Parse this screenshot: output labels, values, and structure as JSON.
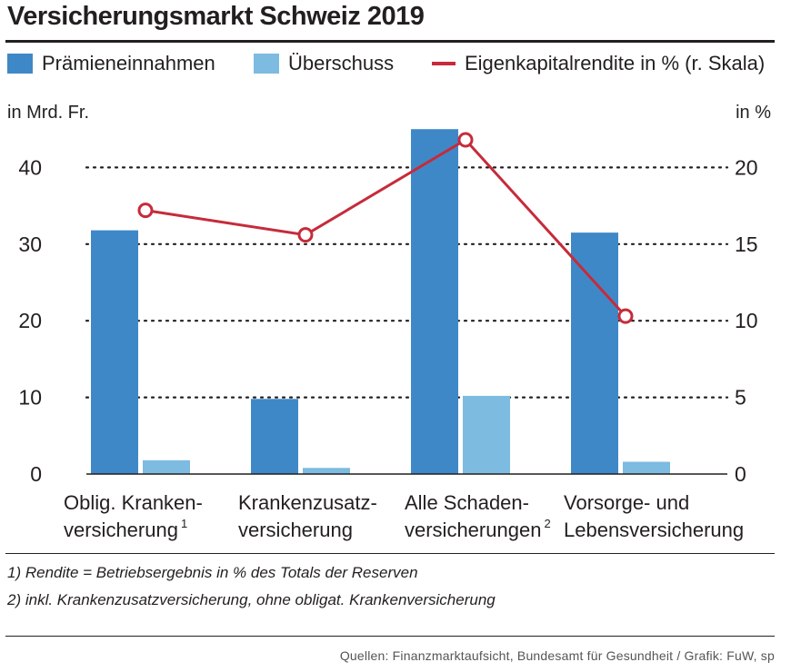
{
  "title": "Versicherungsmarkt Schweiz 2019",
  "colors": {
    "primary": "#3f88c7",
    "secondary": "#7dbbe0",
    "line": "#c62b3a",
    "text": "#231f20"
  },
  "legend": {
    "primary": "Prämieneinnahmen",
    "secondary": "Überschuss",
    "line": "Eigenkapitalrendite in % (r. Skala)"
  },
  "units": {
    "left": "in Mrd. Fr.",
    "right": "in %"
  },
  "chart_data": {
    "type": "bar",
    "title": "Versicherungsmarkt Schweiz 2019",
    "categories": [
      {
        "lines": [
          "Oblig. Kranken-",
          "versicherung"
        ],
        "sup": "1"
      },
      {
        "lines": [
          "Krankenzusatz-",
          "versicherung"
        ],
        "sup": ""
      },
      {
        "lines": [
          "Alle Schaden-",
          "versicherungen"
        ],
        "sup": "2"
      },
      {
        "lines": [
          "Vorsorge- und",
          "Lebensversicherung"
        ],
        "sup": ""
      }
    ],
    "series": [
      {
        "name": "Prämieneinnahmen",
        "axis": "left",
        "kind": "bar",
        "values": [
          31.8,
          9.8,
          45.0,
          31.5
        ]
      },
      {
        "name": "Überschuss",
        "axis": "left",
        "kind": "bar",
        "values": [
          1.8,
          0.8,
          10.2,
          1.6
        ]
      },
      {
        "name": "Eigenkapitalrendite in %",
        "axis": "right",
        "kind": "line",
        "values": [
          17.2,
          15.6,
          21.8,
          10.3
        ]
      }
    ],
    "ylim_left": [
      0,
      50
    ],
    "ylim_right": [
      0,
      25
    ],
    "yticks_left": [
      0,
      10,
      20,
      30,
      40
    ],
    "yticks_right": [
      0,
      5,
      10,
      15,
      20
    ],
    "ylabel_left": "in Mrd. Fr.",
    "ylabel_right": "in %",
    "grid": true
  },
  "footnotes": [
    "1) Rendite = Betriebsergebnis in % des Totals der Reserven",
    "2) inkl. Krankenzusatzversicherung, ohne obligat. Krankenversicherung"
  ],
  "source": "Quellen: Finanzmarktaufsicht, Bundesamt für Gesundheit / Grafik: FuW, sp"
}
